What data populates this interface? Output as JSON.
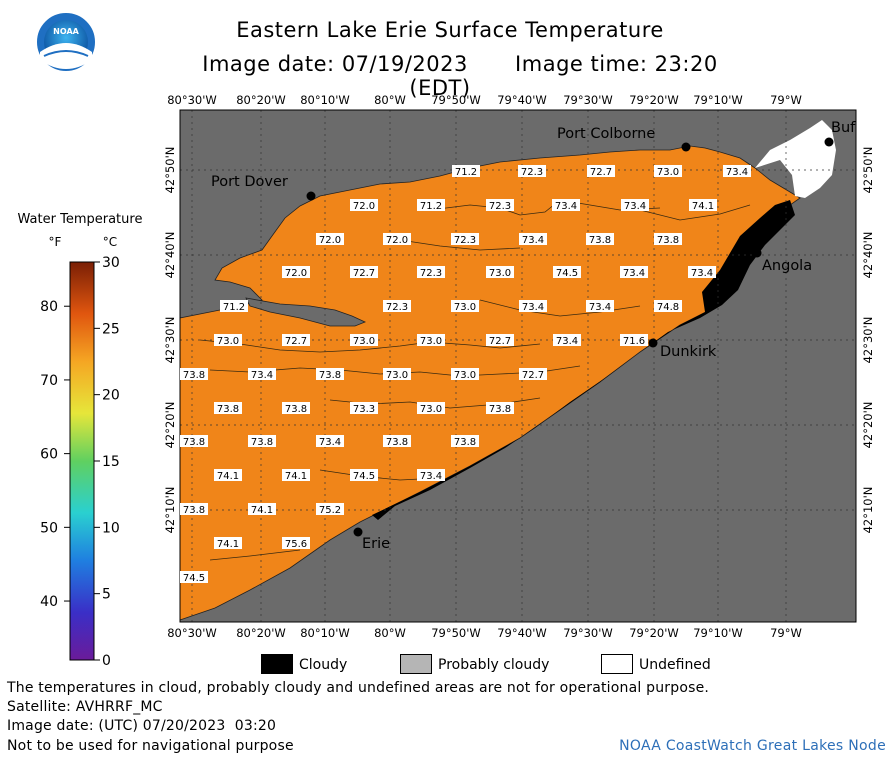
{
  "title": "Eastern Lake Erie Surface Temperature",
  "image_date": "Image date: 07/19/2023",
  "image_time": "Image time: 23:20 (EDT)",
  "logo_text": "NOAA",
  "colors": {
    "land": "#6b6b6b",
    "water_warm": "#f08519",
    "cloud": "#000000",
    "probably_cloudy": "#b5b5b5",
    "undefined": "#ffffff",
    "contour": "#3a2a10"
  },
  "colorbar": {
    "title": "Water Temperature",
    "unit_f": "°F",
    "unit_c": "°C",
    "f_ticks": [
      "80",
      "70",
      "60",
      "50",
      "40"
    ],
    "f_values": [
      80,
      70,
      60,
      50,
      40
    ],
    "c_ticks": [
      "30",
      "25",
      "20",
      "15",
      "10",
      "5",
      "0"
    ],
    "c_values": [
      30,
      25,
      20,
      15,
      10,
      5,
      0
    ]
  },
  "axes": {
    "lon_labels": [
      "80°30'W",
      "80°20'W",
      "80°10'W",
      "80°W",
      "79°50'W",
      "79°40'W",
      "79°30'W",
      "79°20'W",
      "79°10'W",
      "79°W"
    ],
    "lat_labels": [
      "42°50'N",
      "42°40'N",
      "42°30'N",
      "42°20'N",
      "42°10'N"
    ]
  },
  "places": [
    {
      "name": "Port Colborne"
    },
    {
      "name": "Port Dover"
    },
    {
      "name": "Buf"
    },
    {
      "name": "Angola"
    },
    {
      "name": "Dunkirk"
    },
    {
      "name": "Erie"
    }
  ],
  "temperature_labels": [
    "71.2",
    "72.3",
    "72.7",
    "73.0",
    "73.4",
    "72.0",
    "71.2",
    "72.3",
    "73.4",
    "73.4",
    "74.1",
    "72.0",
    "72.0",
    "72.3",
    "73.4",
    "73.8",
    "73.8",
    "72.0",
    "72.7",
    "72.3",
    "73.0",
    "74.5",
    "73.4",
    "73.4",
    "71.2",
    "72.3",
    "73.0",
    "73.4",
    "73.4",
    "74.8",
    "73.0",
    "72.7",
    "73.0",
    "73.0",
    "72.7",
    "73.4",
    "71.6",
    "73.8",
    "73.4",
    "73.8",
    "73.0",
    "73.0",
    "72.7",
    "73.8",
    "73.8",
    "73.3",
    "73.0",
    "73.8",
    "73.8",
    "73.8",
    "73.4",
    "73.8",
    "73.8",
    "74.1",
    "74.1",
    "74.5",
    "73.4",
    "73.8",
    "74.1",
    "75.2",
    "74.1",
    "75.6",
    "74.5"
  ],
  "legend": {
    "cloudy": "Cloudy",
    "probably_cloudy": "Probably cloudy",
    "undefined": "Undefined"
  },
  "notes": {
    "disclaimer": "The temperatures in cloud, probably cloudy and undefined areas are not for operational purpose.",
    "satellite": "Satellite: AVHRRF_MC",
    "utc_date": "Image date: (UTC) 07/20/2023  03:20",
    "navigation": "Not to be used for navigational purpose",
    "credit": "NOAA CoastWatch Great Lakes Node"
  }
}
